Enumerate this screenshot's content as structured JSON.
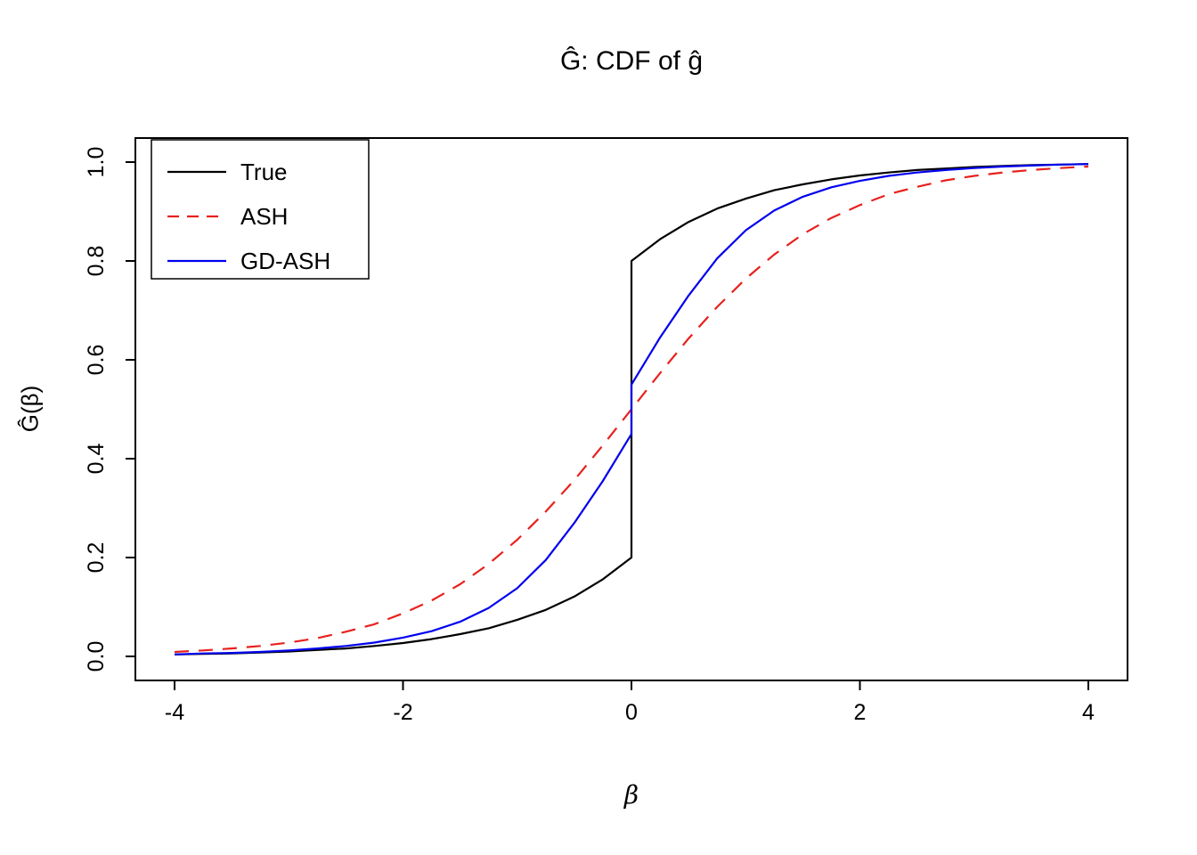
{
  "chart_data": {
    "type": "line",
    "title": "Ĝ: CDF of ĝ",
    "xlabel": "β",
    "ylabel": "Ĝ(β)",
    "xlim": [
      -4,
      4
    ],
    "ylim": [
      0.0,
      1.0
    ],
    "x_ticks": [
      -4,
      -2,
      0,
      2,
      4
    ],
    "y_ticks": [
      0.0,
      0.2,
      0.4,
      0.6,
      0.8,
      1.0
    ],
    "grid": false,
    "legend": {
      "position": "top-left",
      "entries": [
        "True",
        "ASH",
        "GD-ASH"
      ]
    },
    "series": [
      {
        "name": "True",
        "color": "#000000",
        "linetype": "solid",
        "points": [
          [
            -4,
            0.004
          ],
          [
            -3.75,
            0.005
          ],
          [
            -3.5,
            0.006
          ],
          [
            -3.25,
            0.008
          ],
          [
            -3,
            0.01
          ],
          [
            -2.75,
            0.013
          ],
          [
            -2.5,
            0.016
          ],
          [
            -2.25,
            0.021
          ],
          [
            -2,
            0.027
          ],
          [
            -1.75,
            0.035
          ],
          [
            -1.5,
            0.045
          ],
          [
            -1.25,
            0.057
          ],
          [
            -1,
            0.074
          ],
          [
            -0.75,
            0.094
          ],
          [
            -0.5,
            0.121
          ],
          [
            -0.25,
            0.156
          ],
          [
            0,
            0.2
          ],
          [
            0,
            0.8
          ],
          [
            0.25,
            0.844
          ],
          [
            0.5,
            0.879
          ],
          [
            0.75,
            0.906
          ],
          [
            1,
            0.926
          ],
          [
            1.25,
            0.943
          ],
          [
            1.5,
            0.955
          ],
          [
            1.75,
            0.965
          ],
          [
            2,
            0.973
          ],
          [
            2.25,
            0.979
          ],
          [
            2.5,
            0.984
          ],
          [
            2.75,
            0.987
          ],
          [
            3,
            0.99
          ],
          [
            3.25,
            0.992
          ],
          [
            3.5,
            0.994
          ],
          [
            3.75,
            0.995
          ],
          [
            4,
            0.996
          ]
        ]
      },
      {
        "name": "ASH",
        "color": "#e8211d",
        "linetype": "dashed",
        "points": [
          [
            -4,
            0.009
          ],
          [
            -3.75,
            0.012
          ],
          [
            -3.5,
            0.016
          ],
          [
            -3.25,
            0.021
          ],
          [
            -3,
            0.028
          ],
          [
            -2.75,
            0.037
          ],
          [
            -2.5,
            0.05
          ],
          [
            -2.25,
            0.065
          ],
          [
            -2,
            0.087
          ],
          [
            -1.75,
            0.113
          ],
          [
            -1.5,
            0.146
          ],
          [
            -1.25,
            0.187
          ],
          [
            -1,
            0.236
          ],
          [
            -0.75,
            0.293
          ],
          [
            -0.5,
            0.357
          ],
          [
            -0.25,
            0.427
          ],
          [
            0,
            0.5
          ],
          [
            0.25,
            0.573
          ],
          [
            0.5,
            0.643
          ],
          [
            0.75,
            0.707
          ],
          [
            1,
            0.764
          ],
          [
            1.25,
            0.813
          ],
          [
            1.5,
            0.854
          ],
          [
            1.75,
            0.887
          ],
          [
            2,
            0.913
          ],
          [
            2.25,
            0.935
          ],
          [
            2.5,
            0.95
          ],
          [
            2.75,
            0.963
          ],
          [
            3,
            0.972
          ],
          [
            3.25,
            0.979
          ],
          [
            3.5,
            0.984
          ],
          [
            3.75,
            0.988
          ],
          [
            4,
            0.991
          ]
        ]
      },
      {
        "name": "GD-ASH",
        "color": "#0000ee",
        "linetype": "solid",
        "points": [
          [
            -4,
            0.004
          ],
          [
            -3.75,
            0.006
          ],
          [
            -3.5,
            0.007
          ],
          [
            -3.25,
            0.009
          ],
          [
            -3,
            0.012
          ],
          [
            -2.75,
            0.016
          ],
          [
            -2.5,
            0.021
          ],
          [
            -2.25,
            0.028
          ],
          [
            -2,
            0.038
          ],
          [
            -1.75,
            0.051
          ],
          [
            -1.5,
            0.07
          ],
          [
            -1.25,
            0.098
          ],
          [
            -1,
            0.138
          ],
          [
            -0.75,
            0.195
          ],
          [
            -0.5,
            0.27
          ],
          [
            -0.25,
            0.355
          ],
          [
            0,
            0.45
          ],
          [
            0,
            0.55
          ],
          [
            0.25,
            0.645
          ],
          [
            0.5,
            0.73
          ],
          [
            0.75,
            0.805
          ],
          [
            1,
            0.862
          ],
          [
            1.25,
            0.902
          ],
          [
            1.5,
            0.93
          ],
          [
            1.75,
            0.949
          ],
          [
            2,
            0.962
          ],
          [
            2.25,
            0.972
          ],
          [
            2.5,
            0.979
          ],
          [
            2.75,
            0.984
          ],
          [
            3,
            0.988
          ],
          [
            3.25,
            0.991
          ],
          [
            3.5,
            0.993
          ],
          [
            3.75,
            0.995
          ],
          [
            4,
            0.996
          ]
        ]
      }
    ]
  }
}
